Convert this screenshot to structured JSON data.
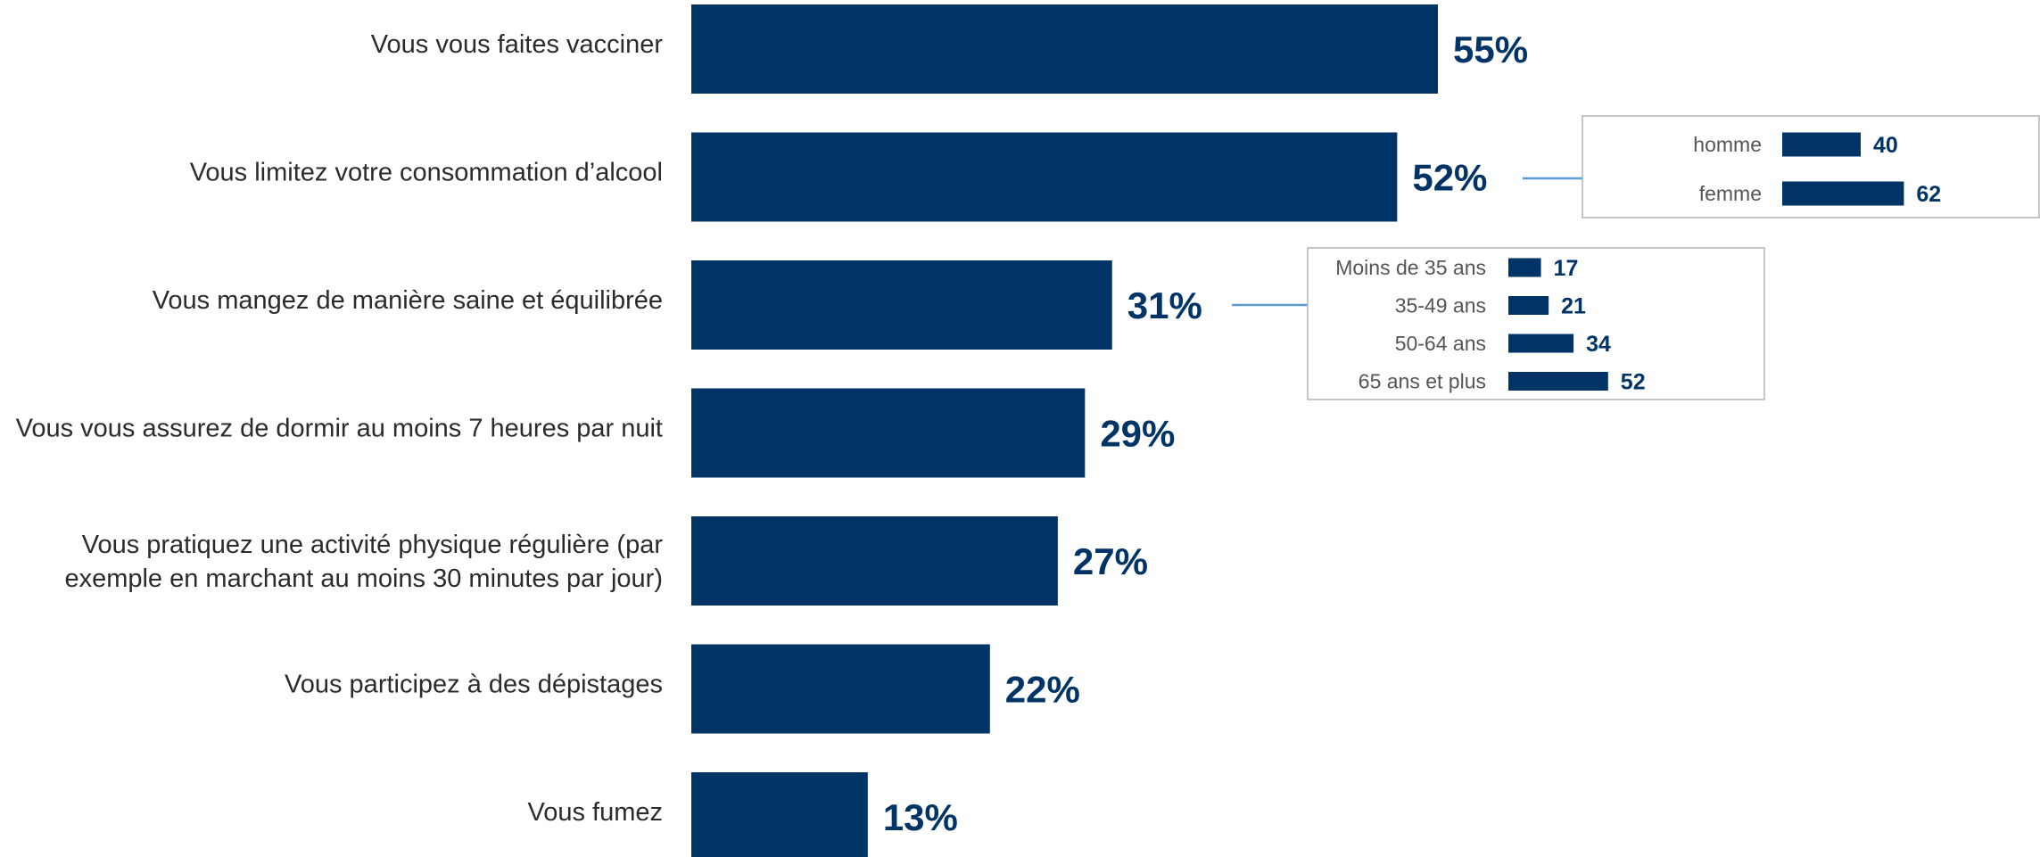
{
  "chart_data": [
    {
      "type": "bar",
      "orientation": "horizontal",
      "categories": [
        [
          "Vous vous faites vacciner"
        ],
        [
          "Vous limitez votre consommation d’alcool"
        ],
        [
          "Vous mangez de manière saine et équilibrée"
        ],
        [
          "Vous vous assurez de dormir au moins 7 heures par nuit"
        ],
        [
          "Vous pratiquez une activité physique régulière (par",
          "exemple en marchant au moins 30 minutes par jour)"
        ],
        [
          "Vous participez à des dépistages"
        ],
        [
          "Vous fumez"
        ]
      ],
      "values": [
        55,
        52,
        31,
        29,
        27,
        22,
        13
      ],
      "value_labels": [
        "55%",
        "52%",
        "31%",
        "29%",
        "27%",
        "22%",
        "13%"
      ],
      "unit": "%",
      "bar_color": "#003366"
    },
    {
      "type": "bar",
      "orientation": "horizontal",
      "linked_to": "Vous limitez votre consommation d’alcool",
      "categories": [
        "homme",
        "femme"
      ],
      "values": [
        40,
        62
      ],
      "value_labels": [
        "40",
        "62"
      ],
      "bar_color": "#003366"
    },
    {
      "type": "bar",
      "orientation": "horizontal",
      "linked_to": "Vous mangez de manière saine et équilibrée",
      "categories": [
        "Moins de 35 ans",
        "35-49 ans",
        "50-64 ans",
        "65 ans et plus"
      ],
      "values": [
        17,
        21,
        34,
        52
      ],
      "value_labels": [
        "17",
        "21",
        "34",
        "52"
      ],
      "bar_color": "#003366"
    }
  ],
  "colors": {
    "bar": "#003366",
    "arrow": "#5b9bd5",
    "inset_border": "#b3b3b3"
  }
}
